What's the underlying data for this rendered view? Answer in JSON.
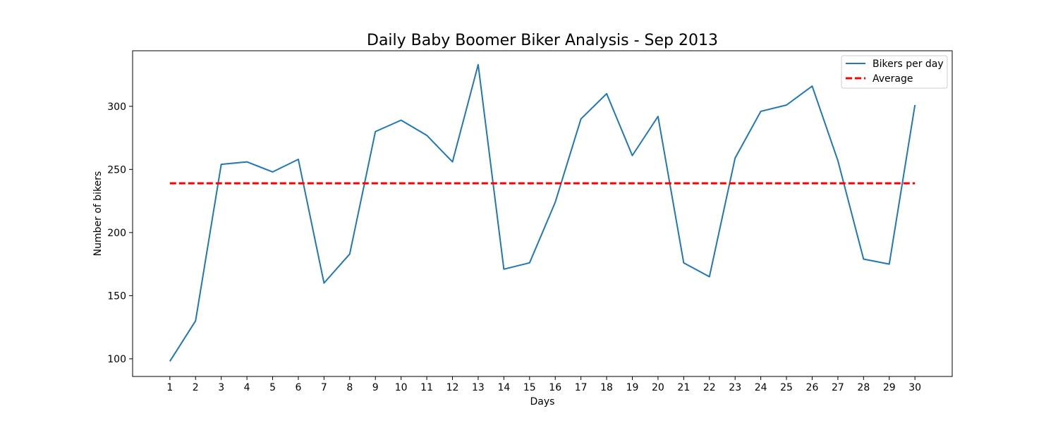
{
  "chart_data": {
    "type": "line",
    "title": "Daily Baby Boomer Biker Analysis - Sep 2013",
    "xlabel": "Days",
    "ylabel": "Number of bikers",
    "x": [
      1,
      2,
      3,
      4,
      5,
      6,
      7,
      8,
      9,
      10,
      11,
      12,
      13,
      14,
      15,
      16,
      17,
      18,
      19,
      20,
      21,
      22,
      23,
      24,
      25,
      26,
      27,
      28,
      29,
      30
    ],
    "series": [
      {
        "name": "Bikers per day",
        "color": "#1f77b4",
        "style": "solid",
        "values": [
          98,
          130,
          254,
          256,
          248,
          258,
          160,
          183,
          280,
          289,
          277,
          256,
          333,
          171,
          176,
          224,
          290,
          310,
          261,
          292,
          176,
          165,
          259,
          296,
          301,
          316,
          257,
          179,
          175,
          301
        ]
      },
      {
        "name": "Average",
        "color": "#ff0000",
        "style": "dashed",
        "values": [
          239,
          239,
          239,
          239,
          239,
          239,
          239,
          239,
          239,
          239,
          239,
          239,
          239,
          239,
          239,
          239,
          239,
          239,
          239,
          239,
          239,
          239,
          239,
          239,
          239,
          239,
          239,
          239,
          239,
          239
        ]
      }
    ],
    "xlim": [
      -0.45,
      31.45
    ],
    "ylim": [
      86,
      344
    ],
    "yticks": [
      100,
      150,
      200,
      250,
      300
    ],
    "grid": false,
    "legend_position": "top-right"
  }
}
